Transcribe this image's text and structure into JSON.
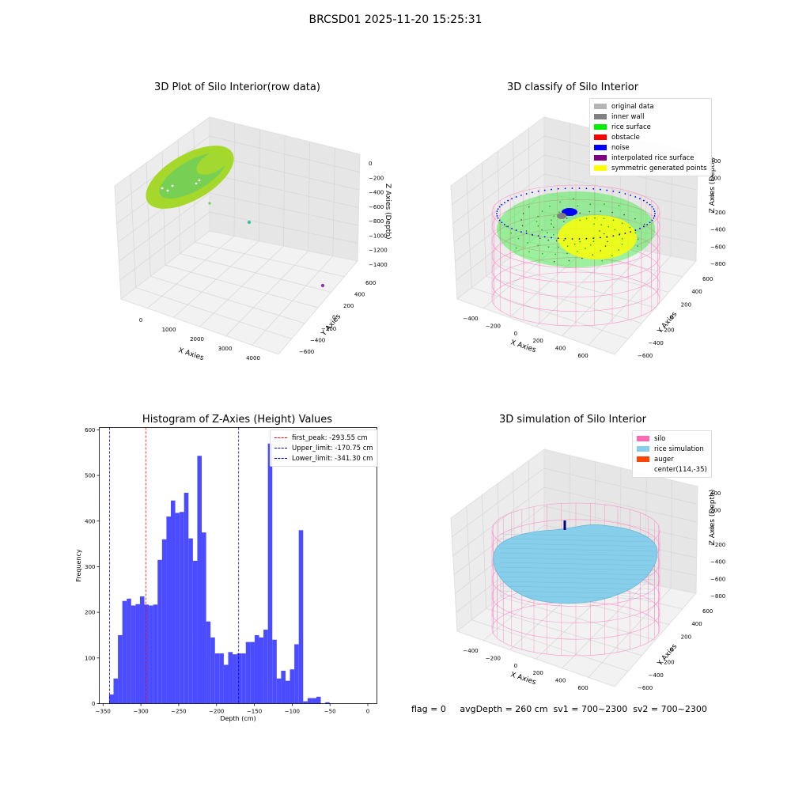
{
  "suptitle": "BRCSD01 2025-11-20 15:25:31",
  "status_line": "flag = 0     avgDepth = 260 cm  sv1 = 700~2300  sv2 = 700~2300",
  "chart_data": [
    {
      "type": "scatter",
      "title": "3D Plot of Silo Interior(row data)",
      "xlabel": "X Axies",
      "ylabel": "Y Axies",
      "zlabel": "Z Axies (Depth)",
      "x_ticks": [
        "0",
        "1000",
        "2000",
        "3000",
        "4000"
      ],
      "y_ticks": [
        "−600",
        "−400",
        "−200",
        "0",
        "200",
        "400",
        "600"
      ],
      "z_ticks": [
        "0",
        "−200",
        "−400",
        "−600",
        "−800",
        "−1000",
        "−1200",
        "−1400"
      ],
      "xlim": [
        -500,
        4300
      ],
      "ylim": [
        -650,
        650
      ],
      "zlim": [
        -1450,
        50
      ],
      "colors": {
        "surface_a": "#a6d82c",
        "surface_b": "#6fcf5c",
        "outlier": "#8a3ba0"
      }
    },
    {
      "type": "scatter",
      "title": "3D classify of Silo Interior",
      "xlabel": "X Axies",
      "ylabel": "Y Axies",
      "zlabel": "Z Axies (Depth)",
      "x_ticks": [
        "−400",
        "−200",
        "0",
        "200",
        "400",
        "600"
      ],
      "y_ticks": [
        "−600",
        "−400",
        "−200",
        "0",
        "200",
        "400",
        "600"
      ],
      "z_ticks": [
        "400",
        "200",
        "0",
        "−200",
        "−400",
        "−600",
        "−800"
      ],
      "legend": [
        {
          "label": "original data",
          "color": "#b5b5b5"
        },
        {
          "label": "inner wall",
          "color": "#808080"
        },
        {
          "label": "rice surface",
          "color": "#00ee00"
        },
        {
          "label": "obstacle",
          "color": "#ff0000"
        },
        {
          "label": "noise",
          "color": "#0000ff"
        },
        {
          "label": "interpolated rice surface",
          "color": "#800080"
        },
        {
          "label": "symmetric generated points",
          "color": "#ffff00"
        }
      ],
      "colors": {
        "wire": "#ff7fbf"
      }
    },
    {
      "type": "bar",
      "title": "Histogram of Z-Axies (Height) Values",
      "xlabel": "Depth (cm)",
      "ylabel": "Frequency",
      "xlim": [
        -355,
        12
      ],
      "ylim": [
        0,
        605
      ],
      "x_ticks": [
        -350,
        -300,
        -250,
        -200,
        -150,
        -100,
        -50,
        0
      ],
      "y_ticks": [
        0,
        100,
        200,
        300,
        400,
        500,
        600
      ],
      "bin_start": -342,
      "bin_width": 5.83,
      "values": [
        20,
        55,
        150,
        225,
        230,
        215,
        218,
        235,
        217,
        215,
        217,
        315,
        360,
        410,
        445,
        418,
        420,
        462,
        362,
        313,
        543,
        375,
        180,
        145,
        110,
        110,
        85,
        113,
        108,
        110,
        110,
        135,
        135,
        150,
        145,
        162,
        570,
        140,
        55,
        72,
        50,
        75,
        130,
        380,
        5,
        12,
        12,
        15,
        0,
        3
      ],
      "bar_color": "#4b4bff",
      "vlines": [
        {
          "label": "first_peak: -293.55 cm",
          "value": -293.55,
          "color": "#ff0000"
        },
        {
          "label": "Upper_limit: -170.75 cm",
          "value": -170.75,
          "color": "#0000cc"
        },
        {
          "label": "Lower_limit: -341.30 cm",
          "value": -341.3,
          "color": "#0000cc"
        }
      ]
    },
    {
      "type": "area",
      "title": "3D simulation of Silo Interior",
      "xlabel": "X Axies",
      "ylabel": "Y Axies",
      "zlabel": "Z Axies (Depth)",
      "x_ticks": [
        "−400",
        "−200",
        "0",
        "200",
        "400",
        "600"
      ],
      "y_ticks": [
        "−600",
        "−400",
        "−200",
        "0",
        "200",
        "400",
        "600"
      ],
      "z_ticks": [
        "400",
        "200",
        "0",
        "−200",
        "−400",
        "−600",
        "−800"
      ],
      "legend": [
        {
          "label": "silo",
          "color": "#ff69b4"
        },
        {
          "label": "rice simulation",
          "color": "#87ceeb"
        },
        {
          "label": "auger",
          "color": "#ff4500"
        },
        {
          "label": "center(114,-35)",
          "color": ""
        }
      ],
      "colors": {
        "wire": "#ff7fbf",
        "surface": "#87ceeb",
        "auger": "#000080"
      }
    }
  ]
}
